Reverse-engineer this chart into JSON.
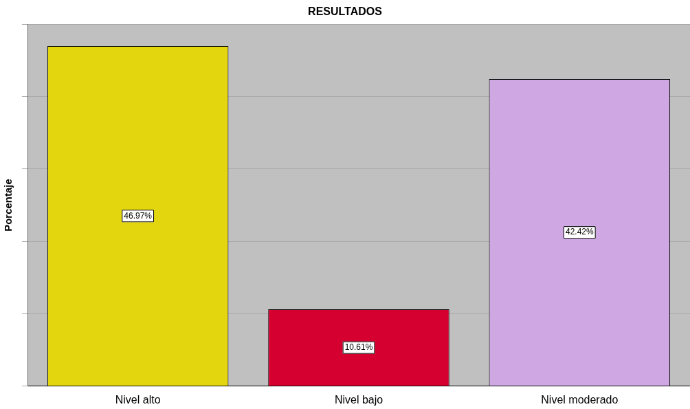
{
  "chart_data": {
    "type": "bar",
    "title": "RESULTADOS",
    "ylabel": "Porcentaje",
    "categories": [
      "Nivel alto",
      "Nivel bajo",
      "Nivel moderado"
    ],
    "values": [
      46.97,
      10.61,
      42.42
    ],
    "colors": [
      "#e3d60f",
      "#d5002f",
      "#cfa8e3"
    ],
    "value_labels": [
      "46.97%",
      "10.61%",
      "42.42%"
    ],
    "ylim": [
      0,
      50
    ],
    "yticks": [
      {
        "value": 0,
        "label": null
      },
      {
        "value": 10,
        "label": null
      },
      {
        "value": 20,
        "label": null
      },
      {
        "value": 30,
        "label": null
      },
      {
        "value": 40,
        "label": null
      },
      {
        "value": 50,
        "label": null
      }
    ],
    "tick_labels": "x",
    "grid": "y",
    "legend": false
  }
}
